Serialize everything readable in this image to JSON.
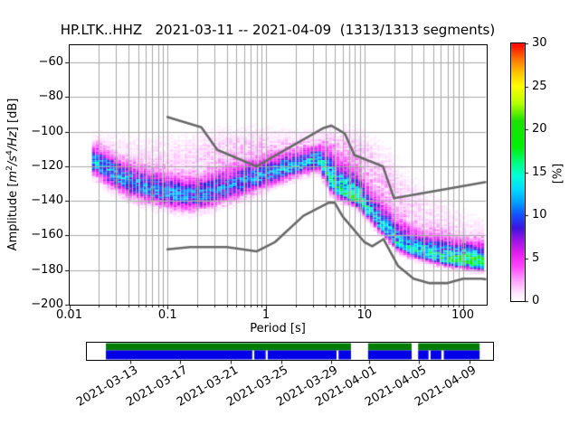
{
  "title": "HP.LTK..HHZ   2021-03-11 -- 2021-04-09  (1313/1313 segments)",
  "station_id": "HP.LTK..HHZ",
  "date_range": "2021-03-11 -- 2021-04-09",
  "segments_used": "1313/1313",
  "chart_data": {
    "type": "heatmap",
    "title": "HP.LTK..HHZ   2021-03-11 -- 2021-04-09  (1313/1313 segments)",
    "xlabel": "Period [s]",
    "ylabel": "Amplitude [m²/s⁴/Hz] [dB]",
    "ylabel_parts": {
      "pre": "Amplitude [",
      "m": "m",
      "m_exp": "2",
      "mid": "/s",
      "s_exp": "4",
      "tail": "/Hz",
      "post": "] [dB]"
    },
    "xscale": "log",
    "xlim": [
      0.01,
      173
    ],
    "ylim": [
      -200,
      -50
    ],
    "grid": true,
    "grid_color": "#a8a8a8",
    "x_ticks": [
      {
        "v": 0.01,
        "label": "0.01"
      },
      {
        "v": 0.1,
        "label": "0.1"
      },
      {
        "v": 1,
        "label": "1"
      },
      {
        "v": 10,
        "label": "10"
      },
      {
        "v": 100,
        "label": "100"
      }
    ],
    "y_ticks": [
      {
        "v": -60,
        "label": "−60"
      },
      {
        "v": -80,
        "label": "−80"
      },
      {
        "v": -100,
        "label": "−100"
      },
      {
        "v": -120,
        "label": "−120"
      },
      {
        "v": -140,
        "label": "−140"
      },
      {
        "v": -160,
        "label": "−160"
      },
      {
        "v": -180,
        "label": "−180"
      },
      {
        "v": -200,
        "label": "−200"
      }
    ],
    "y_gridlines": [
      -60,
      -80,
      -100,
      -120,
      -140,
      -160,
      -180
    ],
    "colorbar": {
      "label": "[%]",
      "min": 0,
      "max": 30,
      "ticks": [
        {
          "v": 0,
          "label": "0"
        },
        {
          "v": 5,
          "label": "5"
        },
        {
          "v": 10,
          "label": "10"
        },
        {
          "v": 15,
          "label": "15"
        },
        {
          "v": 20,
          "label": "20"
        },
        {
          "v": 25,
          "label": "25"
        },
        {
          "v": 30,
          "label": "30"
        }
      ],
      "stops": [
        [
          0,
          "#ffffff"
        ],
        [
          1,
          "#ffe3ff"
        ],
        [
          2.5,
          "#ff9dff"
        ],
        [
          4,
          "#ff46ff"
        ],
        [
          5.5,
          "#e61ef0"
        ],
        [
          7,
          "#a014e6"
        ],
        [
          8.5,
          "#3c14dc"
        ],
        [
          10,
          "#1450ff"
        ],
        [
          11.5,
          "#00a0ff"
        ],
        [
          13,
          "#00d9ff"
        ],
        [
          14.5,
          "#00ffd9"
        ],
        [
          16,
          "#00ff87"
        ],
        [
          18,
          "#00f000"
        ],
        [
          21,
          "#1ee100"
        ],
        [
          23,
          "#b4ff00"
        ],
        [
          25,
          "#ffff00"
        ],
        [
          26.5,
          "#ffc800"
        ],
        [
          28,
          "#ff7d00"
        ],
        [
          30,
          "#ff0000"
        ]
      ]
    },
    "period_step_octaves": 0.125,
    "density_columns_key": [
      "period_s",
      "mode_db",
      "sigma_up_db",
      "sigma_down_db",
      "peak_percent",
      "halo_percent",
      "halo_offset_db",
      "halo_sigma_db"
    ],
    "density_spine": [
      [
        0.018,
        -117.5,
        5.5,
        4.5,
        12,
        0.7,
        11,
        6
      ],
      [
        0.026,
        -123,
        6,
        5,
        12,
        0.8,
        13,
        7
      ],
      [
        0.04,
        -129,
        6,
        5,
        11,
        0.9,
        16,
        8
      ],
      [
        0.06,
        -132.5,
        6.5,
        5,
        11,
        1.0,
        18,
        8
      ],
      [
        0.1,
        -135.5,
        6.5,
        5,
        11,
        1.1,
        20,
        9
      ],
      [
        0.16,
        -137.5,
        6.5,
        5,
        10.5,
        1.2,
        22,
        9
      ],
      [
        0.25,
        -136,
        7,
        5,
        10,
        1.4,
        22,
        9
      ],
      [
        0.4,
        -132.5,
        7,
        5,
        10,
        1.5,
        20,
        9
      ],
      [
        0.63,
        -128.5,
        6.5,
        5,
        10.5,
        1.5,
        18,
        8
      ],
      [
        1.0,
        -125,
        6,
        4.5,
        11,
        1.4,
        15,
        8
      ],
      [
        1.6,
        -121.5,
        5.5,
        4,
        11.5,
        1.2,
        13,
        7
      ],
      [
        2.5,
        -118.5,
        5,
        3.5,
        12,
        1.0,
        11,
        6
      ],
      [
        3.5,
        -116,
        4.5,
        4,
        13,
        0.9,
        10,
        6
      ],
      [
        4.5,
        -128,
        9,
        4,
        14,
        2.0,
        17,
        8
      ],
      [
        5.5,
        -133,
        8.5,
        3.5,
        15,
        2.2,
        19,
        9
      ],
      [
        7.0,
        -136,
        8,
        3,
        16,
        2.2,
        21,
        10
      ],
      [
        9.0,
        -140,
        8,
        3,
        15,
        2.0,
        23,
        11
      ],
      [
        11,
        -146,
        8,
        2.8,
        13,
        1.9,
        25,
        12
      ],
      [
        14,
        -153,
        8,
        2.8,
        12,
        1.8,
        26,
        12
      ],
      [
        18,
        -159,
        8,
        2.8,
        12,
        1.7,
        27,
        13
      ],
      [
        22,
        -165,
        8,
        2.6,
        12.5,
        1.5,
        26,
        13
      ],
      [
        30,
        -168.5,
        7.5,
        2.5,
        13,
        1.3,
        25,
        12
      ],
      [
        42,
        -171,
        7,
        2.4,
        13.5,
        1.1,
        23,
        11
      ],
      [
        60,
        -173,
        7,
        2.4,
        14.5,
        1.0,
        21,
        10
      ],
      [
        85,
        -174.5,
        6.5,
        2.4,
        17,
        0.9,
        19,
        9
      ],
      [
        120,
        -175.5,
        6.5,
        2.4,
        18,
        0.8,
        17,
        9
      ],
      [
        173,
        -176.5,
        6.5,
        2.4,
        18,
        0.8,
        15,
        8
      ]
    ],
    "noise_models": {
      "color": "#696969",
      "nhnm": [
        [
          0.1,
          -91.5
        ],
        [
          0.22,
          -97.4
        ],
        [
          0.32,
          -110.5
        ],
        [
          0.8,
          -120.0
        ],
        [
          3.8,
          -98.0
        ],
        [
          4.6,
          -96.5
        ],
        [
          6.3,
          -101.0
        ],
        [
          7.9,
          -113.5
        ],
        [
          15.4,
          -120.0
        ],
        [
          20.0,
          -138.5
        ],
        [
          173,
          -129.1
        ]
      ],
      "nlnm": [
        [
          0.1,
          -168.0
        ],
        [
          0.17,
          -166.7
        ],
        [
          0.4,
          -166.7
        ],
        [
          0.8,
          -169.2
        ],
        [
          1.24,
          -163.7
        ],
        [
          2.4,
          -148.6
        ],
        [
          4.3,
          -141.1
        ],
        [
          5.0,
          -141.1
        ],
        [
          6.0,
          -149.0
        ],
        [
          10.0,
          -163.8
        ],
        [
          12.0,
          -166.2
        ],
        [
          15.6,
          -162.1
        ],
        [
          21.9,
          -177.5
        ],
        [
          31.6,
          -185.0
        ],
        [
          45.0,
          -187.5
        ],
        [
          70.0,
          -187.5
        ],
        [
          101.0,
          -185.0
        ],
        [
          154.0,
          -185.0
        ],
        [
          173,
          -185.3
        ]
      ]
    }
  },
  "timeline": {
    "green_color": "#007c00",
    "blue_color": "#0000e8",
    "green_segments": [
      [
        0.049,
        0.651
      ],
      [
        0.693,
        0.8
      ],
      [
        0.816,
        0.967
      ]
    ],
    "blue_segments": [
      [
        0.049,
        0.4085
      ],
      [
        0.4135,
        0.4415
      ],
      [
        0.4465,
        0.6155
      ],
      [
        0.6205,
        0.651
      ],
      [
        0.693,
        0.8
      ],
      [
        0.816,
        0.8415
      ],
      [
        0.8465,
        0.873
      ],
      [
        0.879,
        0.967
      ]
    ],
    "date_ticks": [
      {
        "f": 0.109,
        "label": "2021-03-13"
      },
      {
        "f": 0.232,
        "label": "2021-03-17"
      },
      {
        "f": 0.356,
        "label": "2021-03-21"
      },
      {
        "f": 0.48,
        "label": "2021-03-25"
      },
      {
        "f": 0.602,
        "label": "2021-03-29"
      },
      {
        "f": 0.696,
        "label": "2021-04-01"
      },
      {
        "f": 0.818,
        "label": "2021-04-05"
      },
      {
        "f": 0.942,
        "label": "2021-04-09"
      }
    ]
  }
}
